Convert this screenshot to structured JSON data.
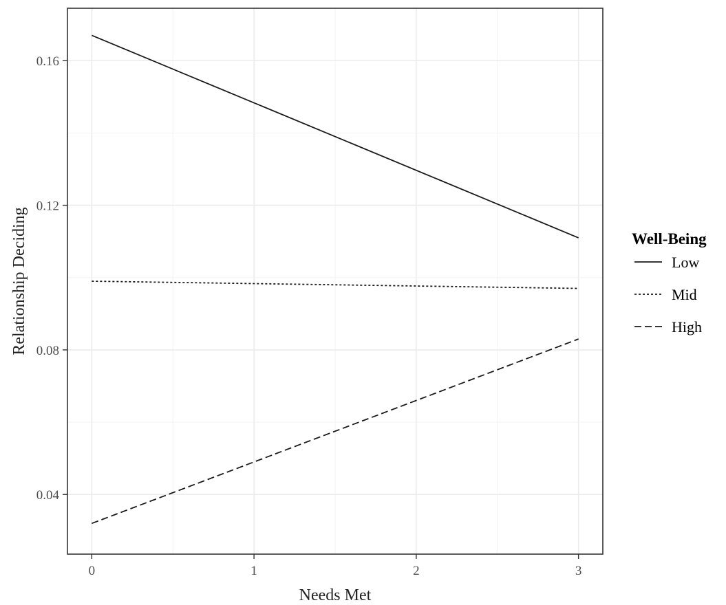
{
  "chart_data": {
    "type": "line",
    "title": "",
    "xlabel": "Needs Met",
    "ylabel": "Relationship Deciding",
    "xlim": [
      -0.15,
      3.15
    ],
    "ylim": [
      0.0235,
      0.1745
    ],
    "x_ticks": [
      0,
      1,
      2,
      3
    ],
    "x_tick_labels": [
      "0",
      "1",
      "2",
      "3"
    ],
    "y_ticks": [
      0.04,
      0.08,
      0.12,
      0.16
    ],
    "y_tick_labels": [
      "0.04",
      "0.08",
      "0.12",
      "0.16"
    ],
    "grid": true,
    "legend": {
      "title": "Well-Being",
      "position": "right"
    },
    "series": [
      {
        "name": "Low",
        "line_style": "solid",
        "x": [
          0,
          3
        ],
        "y": [
          0.167,
          0.111
        ]
      },
      {
        "name": "Mid",
        "line_style": "dotted",
        "x": [
          0,
          3
        ],
        "y": [
          0.099,
          0.097
        ]
      },
      {
        "name": "High",
        "line_style": "dashed",
        "x": [
          0,
          3
        ],
        "y": [
          0.032,
          0.083
        ]
      }
    ]
  }
}
